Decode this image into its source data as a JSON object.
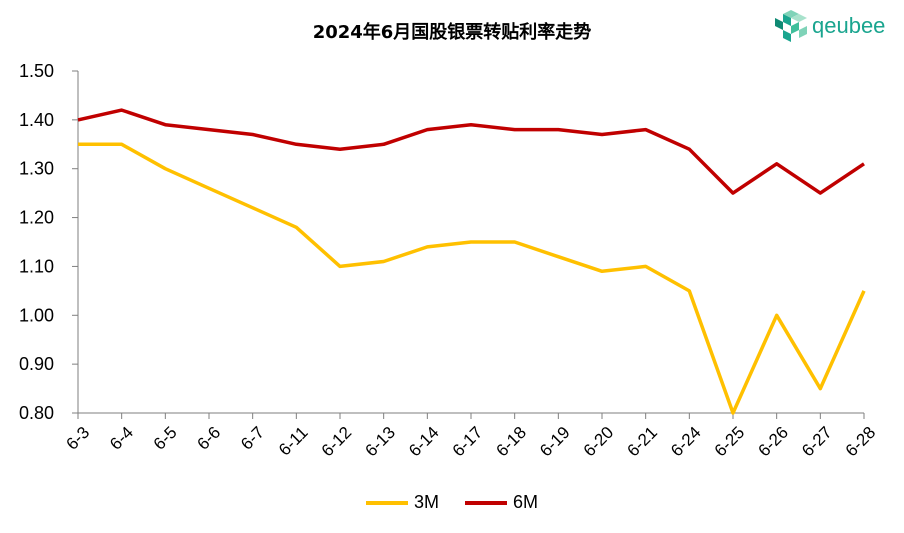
{
  "chart_data": {
    "type": "line",
    "title": "2024年6月国股银票转贴利率走势",
    "categories": [
      "6-3",
      "6-4",
      "6-5",
      "6-6",
      "6-7",
      "6-11",
      "6-12",
      "6-13",
      "6-14",
      "6-17",
      "6-18",
      "6-19",
      "6-20",
      "6-21",
      "6-24",
      "6-25",
      "6-26",
      "6-27",
      "6-28"
    ],
    "series": [
      {
        "name": "3M",
        "color": "#FFC000",
        "values": [
          1.35,
          1.35,
          1.3,
          1.26,
          1.22,
          1.18,
          1.1,
          1.11,
          1.14,
          1.15,
          1.15,
          1.12,
          1.09,
          1.1,
          1.05,
          0.8,
          1.0,
          0.85,
          1.05
        ]
      },
      {
        "name": "6M",
        "color": "#C00000",
        "values": [
          1.4,
          1.42,
          1.39,
          1.38,
          1.37,
          1.35,
          1.34,
          1.35,
          1.38,
          1.39,
          1.38,
          1.38,
          1.37,
          1.38,
          1.34,
          1.25,
          1.31,
          1.25,
          1.31
        ]
      }
    ],
    "ylim": [
      0.8,
      1.5
    ],
    "yticks": [
      "0.80",
      "0.90",
      "1.00",
      "1.10",
      "1.20",
      "1.30",
      "1.40",
      "1.50"
    ],
    "xlabel": "",
    "ylabel": "",
    "grid": false,
    "legend_position": "bottom"
  },
  "logo": {
    "text": "qeubee",
    "icon": "cube-cluster-icon",
    "color": "#1aa58f"
  }
}
